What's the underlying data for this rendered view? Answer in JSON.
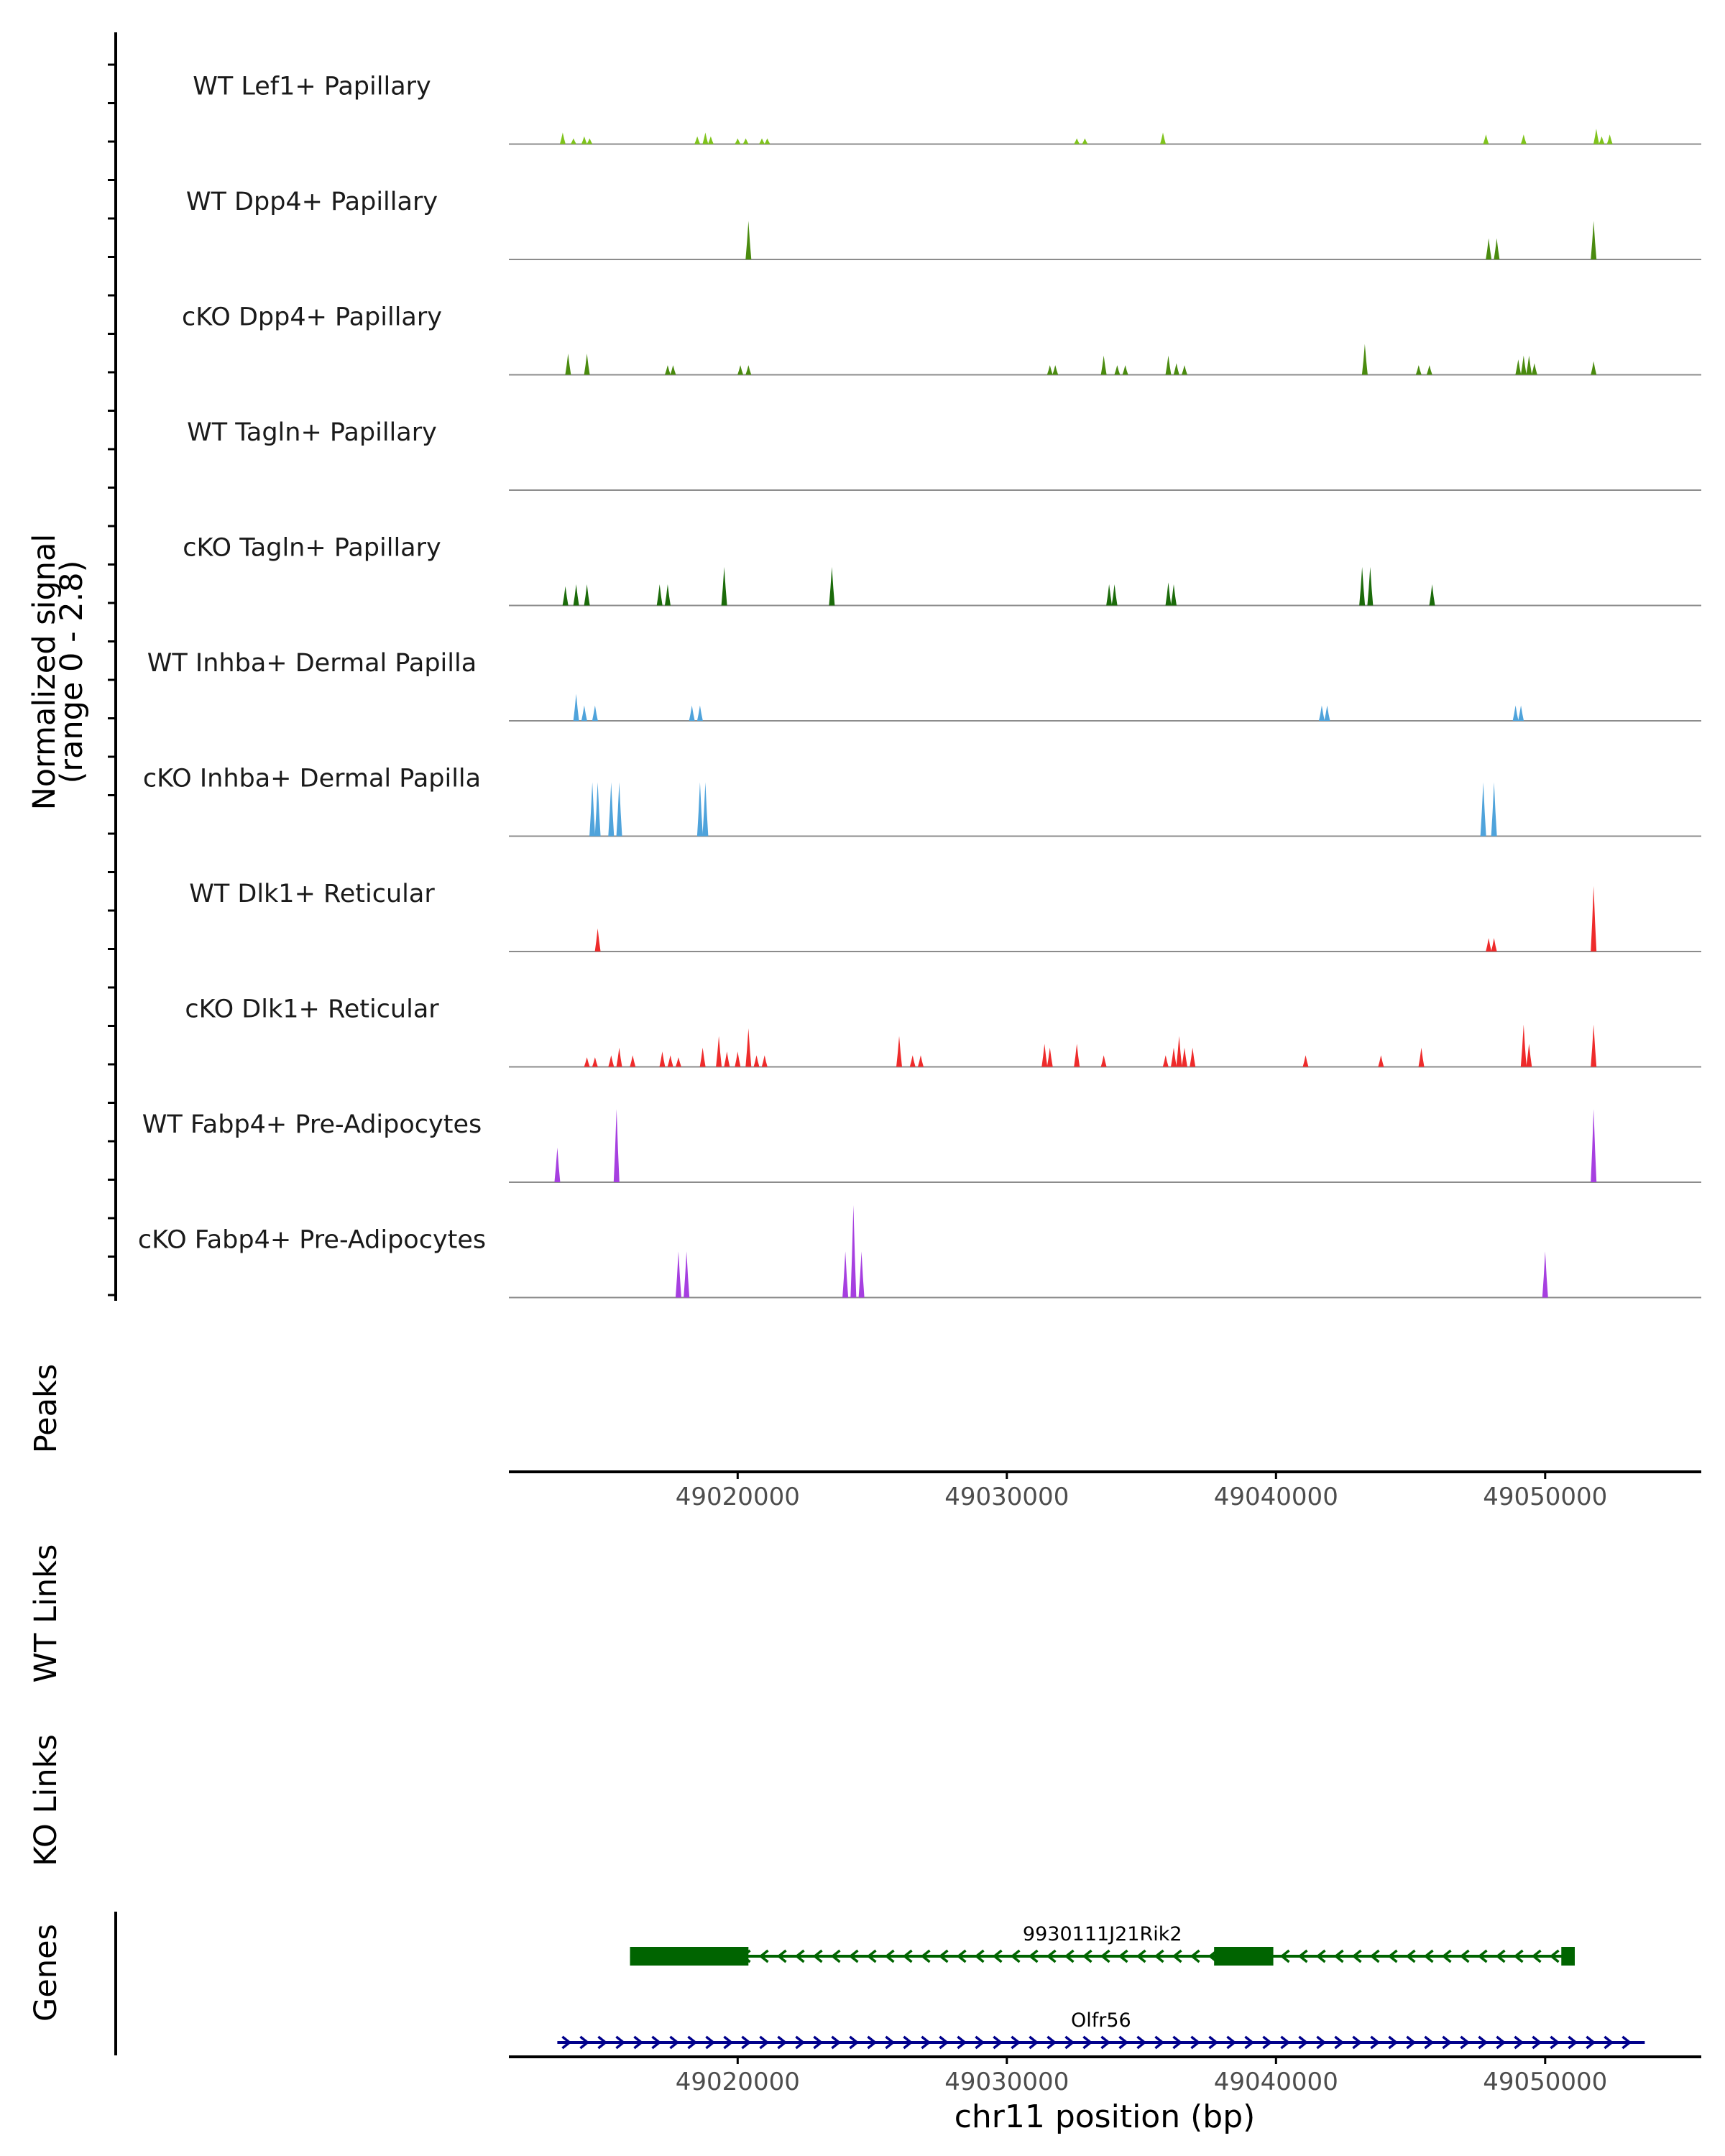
{
  "chart_data": {
    "type": "area",
    "title": "",
    "chromosome": "chr11",
    "xlabel": "chr11 position (bp)",
    "ylabel": "Normalized signal",
    "ylabel_range": "(range 0 - 2.8)",
    "ylim": [
      0,
      2.8
    ],
    "xlim": [
      49011500,
      49055800
    ],
    "x_ticks": [
      49020000,
      49030000,
      49040000,
      49050000
    ],
    "x_tick_labels": [
      "49020000",
      "49030000",
      "49040000",
      "49050000"
    ],
    "colors": {
      "lef1": "#7FC31C",
      "dpp4": "#4A8B0F",
      "tagln": "#1B6B0A",
      "inhba": "#4FA3DB",
      "dlk1": "#EE2B2B",
      "fabp4": "#A63FE0",
      "gene_minus": "#006400",
      "gene_plus": "#00008B",
      "baseline": "#8C8C8C",
      "axis": "#000000"
    },
    "tracks": [
      {
        "name": "WT Lef1+ Papillary",
        "color_key": "lef1",
        "peaks": [
          [
            49013500,
            0.3
          ],
          [
            49013900,
            0.15
          ],
          [
            49014300,
            0.2
          ],
          [
            49014500,
            0.15
          ],
          [
            49018500,
            0.2
          ],
          [
            49018800,
            0.3
          ],
          [
            49019000,
            0.2
          ],
          [
            49020000,
            0.15
          ],
          [
            49020300,
            0.15
          ],
          [
            49020900,
            0.15
          ],
          [
            49021100,
            0.15
          ],
          [
            49032600,
            0.15
          ],
          [
            49032900,
            0.15
          ],
          [
            49035800,
            0.3
          ],
          [
            49047800,
            0.25
          ],
          [
            49049200,
            0.25
          ],
          [
            49051900,
            0.4
          ],
          [
            49052100,
            0.2
          ],
          [
            49052400,
            0.25
          ]
        ]
      },
      {
        "name": "WT Dpp4+ Papillary",
        "color_key": "dpp4",
        "peaks": [
          [
            49020400,
            1.0
          ],
          [
            49047900,
            0.55
          ],
          [
            49048200,
            0.55
          ],
          [
            49051800,
            1.0
          ]
        ]
      },
      {
        "name": "cKO Dpp4+ Papillary",
        "color_key": "dpp4",
        "peaks": [
          [
            49013700,
            0.55
          ],
          [
            49014400,
            0.55
          ],
          [
            49017400,
            0.25
          ],
          [
            49017600,
            0.25
          ],
          [
            49020100,
            0.25
          ],
          [
            49020400,
            0.25
          ],
          [
            49031600,
            0.25
          ],
          [
            49031800,
            0.25
          ],
          [
            49033600,
            0.5
          ],
          [
            49034100,
            0.25
          ],
          [
            49034400,
            0.25
          ],
          [
            49036000,
            0.5
          ],
          [
            49036300,
            0.3
          ],
          [
            49036600,
            0.25
          ],
          [
            49043300,
            0.8
          ],
          [
            49045300,
            0.25
          ],
          [
            49045700,
            0.25
          ],
          [
            49049000,
            0.4
          ],
          [
            49049200,
            0.5
          ],
          [
            49049400,
            0.5
          ],
          [
            49049600,
            0.3
          ],
          [
            49051800,
            0.35
          ]
        ]
      },
      {
        "name": "WT Tagln+ Papillary",
        "color_key": "tagln",
        "peaks": []
      },
      {
        "name": "cKO Tagln+ Papillary",
        "color_key": "tagln",
        "peaks": [
          [
            49013600,
            0.5
          ],
          [
            49014000,
            0.55
          ],
          [
            49014400,
            0.55
          ],
          [
            49017100,
            0.55
          ],
          [
            49017400,
            0.55
          ],
          [
            49019500,
            1.0
          ],
          [
            49023500,
            1.0
          ],
          [
            49033800,
            0.55
          ],
          [
            49034000,
            0.55
          ],
          [
            49036000,
            0.6
          ],
          [
            49036200,
            0.55
          ],
          [
            49043200,
            1.0
          ],
          [
            49043500,
            1.0
          ],
          [
            49045800,
            0.55
          ]
        ]
      },
      {
        "name": "WT Inhba+ Dermal Papilla",
        "color_key": "inhba",
        "peaks": [
          [
            49014000,
            0.7
          ],
          [
            49014300,
            0.4
          ],
          [
            49014700,
            0.4
          ],
          [
            49018300,
            0.4
          ],
          [
            49018600,
            0.4
          ],
          [
            49041700,
            0.4
          ],
          [
            49041900,
            0.4
          ],
          [
            49048900,
            0.4
          ],
          [
            49049100,
            0.4
          ]
        ]
      },
      {
        "name": "cKO Inhba+ Dermal Papilla",
        "color_key": "inhba",
        "peaks": [
          [
            49014600,
            1.4
          ],
          [
            49014800,
            1.4
          ],
          [
            49015300,
            1.4
          ],
          [
            49015600,
            1.4
          ],
          [
            49018600,
            1.4
          ],
          [
            49018800,
            1.4
          ],
          [
            49047700,
            1.4
          ],
          [
            49048100,
            1.4
          ]
        ]
      },
      {
        "name": "WT Dlk1+ Reticular",
        "color_key": "dlk1",
        "peaks": [
          [
            49014800,
            0.6
          ],
          [
            49047900,
            0.35
          ],
          [
            49048100,
            0.35
          ],
          [
            49051800,
            1.7
          ]
        ]
      },
      {
        "name": "cKO Dlk1+ Reticular",
        "color_key": "dlk1",
        "peaks": [
          [
            49014400,
            0.25
          ],
          [
            49014700,
            0.25
          ],
          [
            49015300,
            0.3
          ],
          [
            49015600,
            0.5
          ],
          [
            49016100,
            0.3
          ],
          [
            49017200,
            0.4
          ],
          [
            49017500,
            0.3
          ],
          [
            49017800,
            0.25
          ],
          [
            49018700,
            0.5
          ],
          [
            49019300,
            0.8
          ],
          [
            49019600,
            0.4
          ],
          [
            49020000,
            0.4
          ],
          [
            49020400,
            1.0
          ],
          [
            49020700,
            0.3
          ],
          [
            49021000,
            0.3
          ],
          [
            49026000,
            0.8
          ],
          [
            49026500,
            0.3
          ],
          [
            49026800,
            0.3
          ],
          [
            49031400,
            0.6
          ],
          [
            49031600,
            0.5
          ],
          [
            49032600,
            0.6
          ],
          [
            49033600,
            0.3
          ],
          [
            49035900,
            0.3
          ],
          [
            49036200,
            0.5
          ],
          [
            49036400,
            0.8
          ],
          [
            49036600,
            0.5
          ],
          [
            49036900,
            0.5
          ],
          [
            49041100,
            0.3
          ],
          [
            49043900,
            0.3
          ],
          [
            49045400,
            0.5
          ],
          [
            49049200,
            1.1
          ],
          [
            49049400,
            0.6
          ],
          [
            49051800,
            1.1
          ]
        ]
      },
      {
        "name": "WT Fabp4+ Pre-Adipocytes",
        "color_key": "fabp4",
        "peaks": [
          [
            49013300,
            0.9
          ],
          [
            49015500,
            1.9
          ],
          [
            49051800,
            1.9
          ]
        ]
      },
      {
        "name": "cKO Fabp4+ Pre-Adipocytes",
        "color_key": "fabp4",
        "peaks": [
          [
            49017800,
            1.2
          ],
          [
            49018100,
            1.2
          ],
          [
            49024000,
            1.2
          ],
          [
            49024300,
            2.4
          ],
          [
            49024600,
            1.2
          ],
          [
            49050000,
            1.2
          ]
        ]
      }
    ],
    "panels": {
      "peaks_label": "Peaks",
      "wt_links_label": "WT Links",
      "ko_links_label": "KO Links",
      "genes_label": "Genes"
    },
    "genes": [
      {
        "name": "9930111J21Rik2",
        "strand": "-",
        "start": 49016000,
        "end": 49051100,
        "exons": [
          [
            49016000,
            49020400
          ],
          [
            49037700,
            49039900
          ],
          [
            49050600,
            49051100
          ]
        ],
        "color_key": "gene_minus"
      },
      {
        "name": "Olfr56",
        "strand": "+",
        "start": 49013300,
        "end": 49053700,
        "exons": [],
        "color_key": "gene_plus"
      }
    ]
  }
}
